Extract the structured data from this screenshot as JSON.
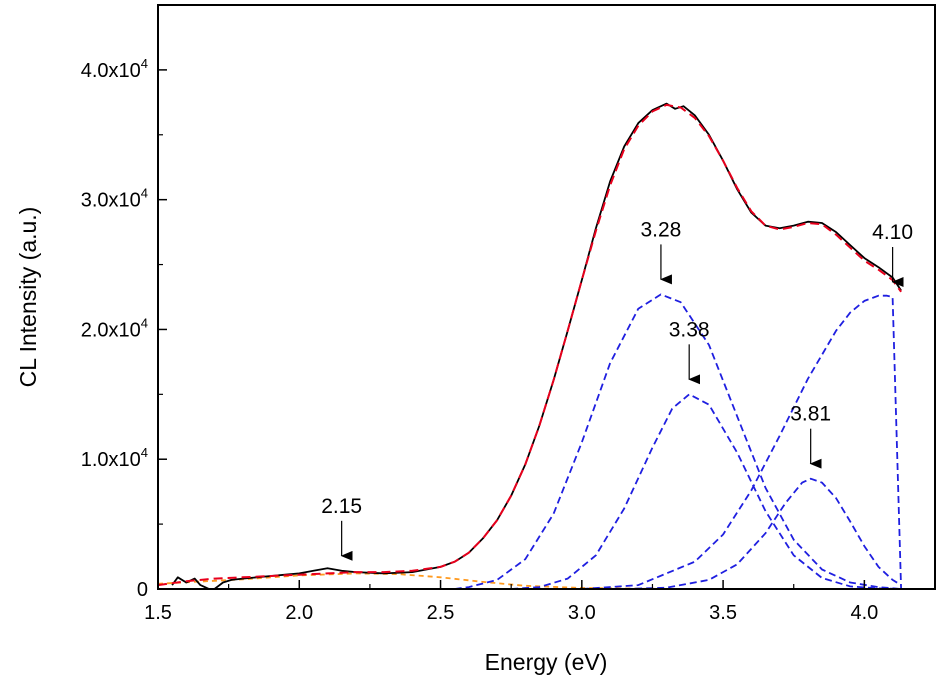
{
  "chart_data": {
    "type": "line",
    "title": "",
    "xlabel": "Energy (eV)",
    "ylabel": "CL Intensity (a.u.)",
    "xlim": [
      1.5,
      4.25
    ],
    "ylim": [
      0,
      45000
    ],
    "x_ticks": [
      1.5,
      2.0,
      2.5,
      3.0,
      3.5,
      4.0
    ],
    "x_tick_labels": [
      "1.5",
      "2.0",
      "2.5",
      "3.0",
      "3.5",
      "4.0"
    ],
    "y_ticks": [
      0,
      10000,
      20000,
      30000,
      40000
    ],
    "y_tick_labels": [
      {
        "mantissa": "0",
        "exp": ""
      },
      {
        "mantissa": "1.0x10",
        "exp": "4"
      },
      {
        "mantissa": "2.0x10",
        "exp": "4"
      },
      {
        "mantissa": "3.0x10",
        "exp": "4"
      },
      {
        "mantissa": "4.0x10",
        "exp": "4"
      }
    ],
    "grid": false,
    "colors": {
      "measured": "#000000",
      "fit_total": "#e8001c",
      "gaussian": "#1f1fe0",
      "background": "#ff9a1f"
    },
    "series": [
      {
        "role": "measured",
        "x": [
          1.55,
          1.57,
          1.6,
          1.63,
          1.65,
          1.68,
          1.7,
          1.73,
          1.76,
          1.8,
          1.85,
          1.9,
          1.95,
          2.0,
          2.05,
          2.1,
          2.15,
          2.2,
          2.3,
          2.4,
          2.5,
          2.55,
          2.6,
          2.65,
          2.7,
          2.75,
          2.8,
          2.85,
          2.9,
          2.95,
          3.0,
          3.05,
          3.1,
          3.15,
          3.2,
          3.25,
          3.28,
          3.3,
          3.33,
          3.36,
          3.4,
          3.45,
          3.5,
          3.55,
          3.6,
          3.65,
          3.7,
          3.75,
          3.8,
          3.85,
          3.9,
          3.95,
          4.0,
          4.05,
          4.1,
          4.13
        ],
        "y": [
          300,
          900,
          500,
          800,
          300,
          0,
          0,
          500,
          700,
          800,
          900,
          1000,
          1100,
          1200,
          1400,
          1600,
          1400,
          1300,
          1200,
          1300,
          1700,
          2100,
          2800,
          3900,
          5300,
          7200,
          9600,
          12600,
          16100,
          19900,
          23800,
          27800,
          31400,
          34100,
          35900,
          36900,
          37200,
          37400,
          37000,
          37200,
          36500,
          35000,
          33000,
          30800,
          29000,
          28000,
          27800,
          28000,
          28300,
          28200,
          27500,
          26500,
          25500,
          24800,
          24000,
          23000
        ]
      },
      {
        "role": "fit_total",
        "x": [
          1.5,
          1.6,
          1.7,
          1.8,
          1.9,
          2.0,
          2.1,
          2.2,
          2.3,
          2.4,
          2.5,
          2.55,
          2.6,
          2.65,
          2.7,
          2.75,
          2.8,
          2.85,
          2.9,
          2.95,
          3.0,
          3.05,
          3.1,
          3.15,
          3.2,
          3.25,
          3.3,
          3.35,
          3.4,
          3.45,
          3.5,
          3.55,
          3.6,
          3.65,
          3.7,
          3.75,
          3.8,
          3.85,
          3.9,
          3.95,
          4.0,
          4.05,
          4.1,
          4.13
        ],
        "y": [
          300,
          600,
          800,
          900,
          1000,
          1100,
          1200,
          1300,
          1300,
          1400,
          1700,
          2100,
          2800,
          3900,
          5300,
          7200,
          9600,
          12600,
          16100,
          19900,
          23800,
          27600,
          31100,
          33900,
          35700,
          36800,
          37300,
          37100,
          36300,
          34900,
          33000,
          30900,
          29100,
          28000,
          27700,
          27900,
          28200,
          28100,
          27300,
          26300,
          25300,
          24600,
          23800,
          22900
        ]
      },
      {
        "role": "gaussian",
        "center": 3.28,
        "x": [
          2.55,
          2.6,
          2.7,
          2.8,
          2.9,
          3.0,
          3.1,
          3.2,
          3.28,
          3.35,
          3.45,
          3.55,
          3.65,
          3.75,
          3.85,
          3.95,
          4.05,
          4.13
        ],
        "y": [
          0,
          150,
          700,
          2300,
          5800,
          11300,
          17400,
          21600,
          22700,
          22100,
          18800,
          13300,
          7800,
          3800,
          1500,
          500,
          150,
          0
        ]
      },
      {
        "role": "gaussian",
        "center": 3.38,
        "x": [
          2.75,
          2.85,
          2.95,
          3.05,
          3.15,
          3.25,
          3.32,
          3.38,
          3.45,
          3.55,
          3.65,
          3.75,
          3.85,
          3.95,
          4.05,
          4.13
        ],
        "y": [
          0,
          150,
          800,
          2600,
          6200,
          10900,
          13900,
          15000,
          14200,
          10500,
          6000,
          2600,
          850,
          200,
          50,
          0
        ]
      },
      {
        "role": "gaussian",
        "center": 3.81,
        "x": [
          3.15,
          3.3,
          3.45,
          3.55,
          3.65,
          3.72,
          3.78,
          3.81,
          3.85,
          3.9,
          3.95,
          4.0,
          4.05,
          4.1,
          4.13
        ],
        "y": [
          0,
          100,
          700,
          1900,
          4300,
          6600,
          8200,
          8500,
          8200,
          7000,
          5200,
          3300,
          1700,
          700,
          300
        ]
      },
      {
        "role": "gaussian",
        "center": 4.1,
        "x": [
          3.0,
          3.2,
          3.4,
          3.5,
          3.6,
          3.7,
          3.8,
          3.9,
          3.95,
          4.0,
          4.05,
          4.08,
          4.1,
          4.13
        ],
        "y": [
          0,
          300,
          2100,
          4200,
          7600,
          11800,
          16200,
          19900,
          21300,
          22200,
          22600,
          22600,
          22500,
          0
        ]
      },
      {
        "role": "background",
        "x": [
          1.5,
          1.8,
          2.0,
          2.2,
          2.35,
          2.5,
          2.65,
          2.8,
          3.0,
          3.3,
          3.7,
          4.13
        ],
        "y": [
          400,
          750,
          1050,
          1200,
          1150,
          900,
          550,
          250,
          80,
          0,
          0,
          0
        ]
      }
    ],
    "annotations": [
      {
        "label": "2.15",
        "x": 2.15,
        "y": 1400
      },
      {
        "label": "3.28",
        "x": 3.28,
        "y": 22700
      },
      {
        "label": "3.38",
        "x": 3.38,
        "y": 15000
      },
      {
        "label": "3.81",
        "x": 3.81,
        "y": 8500
      },
      {
        "label": "4.10",
        "x": 4.1,
        "y": 22500
      }
    ]
  }
}
